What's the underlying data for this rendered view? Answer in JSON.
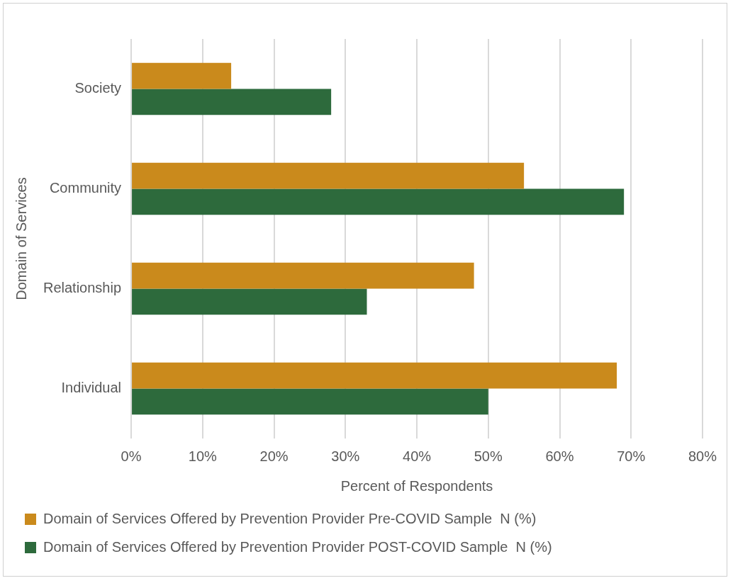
{
  "chart_data": {
    "type": "bar",
    "orientation": "horizontal",
    "xlabel": "Percent of Respondents",
    "ylabel": "Domain of Services",
    "categories": [
      "Society",
      "Community",
      "Relationship",
      "Individual"
    ],
    "series": [
      {
        "name": "Domain of Services Offered by Prevention Provider Pre-COVID Sample  N (%)",
        "color": "#ca8a1c",
        "values": [
          14,
          55,
          48,
          68
        ]
      },
      {
        "name": "Domain of Services Offered by Prevention Provider POST-COVID Sample  N (%)",
        "color": "#2d6a3c",
        "values": [
          28,
          69,
          33,
          50
        ]
      }
    ],
    "xlim": [
      0,
      80
    ],
    "xticks": [
      {
        "value": 0,
        "label": "0%"
      },
      {
        "value": 10,
        "label": "10%"
      },
      {
        "value": 20,
        "label": "20%"
      },
      {
        "value": 30,
        "label": "30%"
      },
      {
        "value": 40,
        "label": "40%"
      },
      {
        "value": 50,
        "label": "50%"
      },
      {
        "value": 60,
        "label": "60%"
      },
      {
        "value": 70,
        "label": "70%"
      },
      {
        "value": 80,
        "label": "80%"
      }
    ],
    "grid": "x",
    "legend": "bottom"
  }
}
